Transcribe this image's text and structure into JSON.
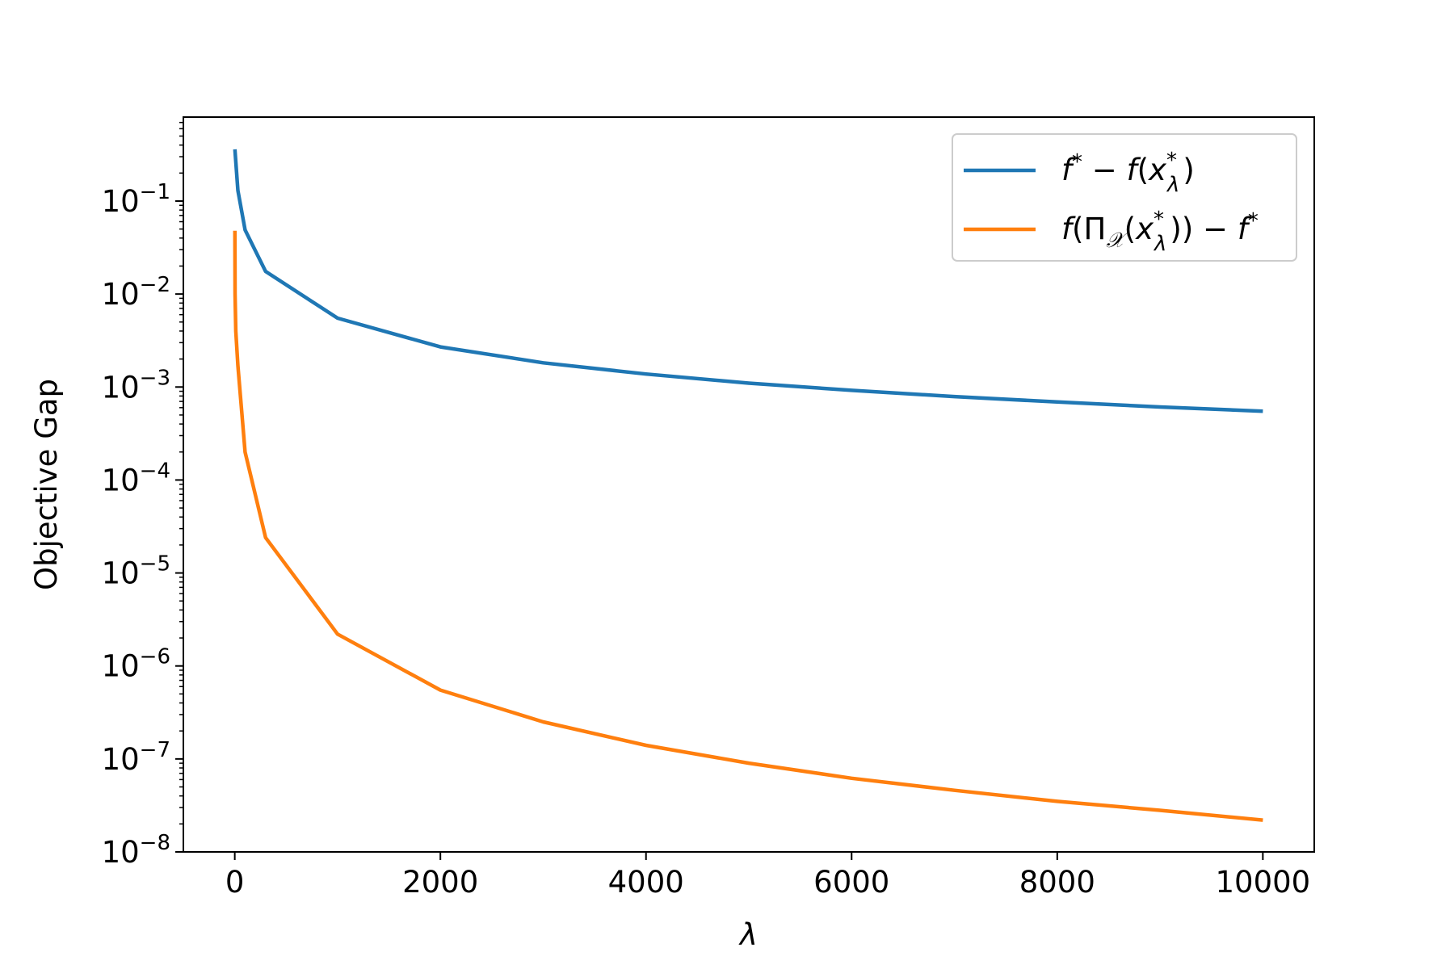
{
  "chart_data": {
    "type": "line",
    "xlabel": "λ",
    "ylabel": "Objective Gap",
    "xlim": [
      -500,
      10500
    ],
    "ylim": [
      1e-08,
      0.8
    ],
    "yscale": "log",
    "grid": false,
    "legend_position": "top-right",
    "x_ticks": [
      0,
      2000,
      4000,
      6000,
      8000,
      10000
    ],
    "x_tick_labels": [
      "0",
      "2000",
      "4000",
      "6000",
      "8000",
      "10000"
    ],
    "y_ticks": [
      1e-08,
      1e-07,
      1e-06,
      1e-05,
      0.0001,
      0.001,
      0.01,
      0.1
    ],
    "y_tick_labels": [
      {
        "base": "10",
        "exp": "−8"
      },
      {
        "base": "10",
        "exp": "−7"
      },
      {
        "base": "10",
        "exp": "−6"
      },
      {
        "base": "10",
        "exp": "−5"
      },
      {
        "base": "10",
        "exp": "−4"
      },
      {
        "base": "10",
        "exp": "−3"
      },
      {
        "base": "10",
        "exp": "−2"
      },
      {
        "base": "10",
        "exp": "−1"
      }
    ],
    "series": [
      {
        "name": "f* − f(x*λ)",
        "color": "#1f77b4",
        "x": [
          1,
          30,
          100,
          300,
          1000,
          2000,
          3000,
          4000,
          5000,
          6000,
          7000,
          8000,
          9000,
          10000
        ],
        "y": [
          0.36,
          0.13,
          0.049,
          0.0175,
          0.0055,
          0.0027,
          0.00182,
          0.00138,
          0.0011,
          0.00092,
          0.00079,
          0.00069,
          0.00061,
          0.00055
        ]
      },
      {
        "name": "f(Π𝒳(x*λ)) − f*",
        "color": "#ff7f0e",
        "x": [
          1,
          3,
          10,
          30,
          100,
          300,
          1000,
          2000,
          3000,
          4000,
          5000,
          6000,
          7000,
          8000,
          9000,
          10000
        ],
        "y": [
          0.048,
          0.01,
          0.004,
          0.0017,
          0.0002,
          2.4e-05,
          2.2e-06,
          5.5e-07,
          2.5e-07,
          1.4e-07,
          9e-08,
          6.2e-08,
          4.6e-08,
          3.5e-08,
          2.8e-08,
          2.2e-08
        ]
      }
    ]
  }
}
